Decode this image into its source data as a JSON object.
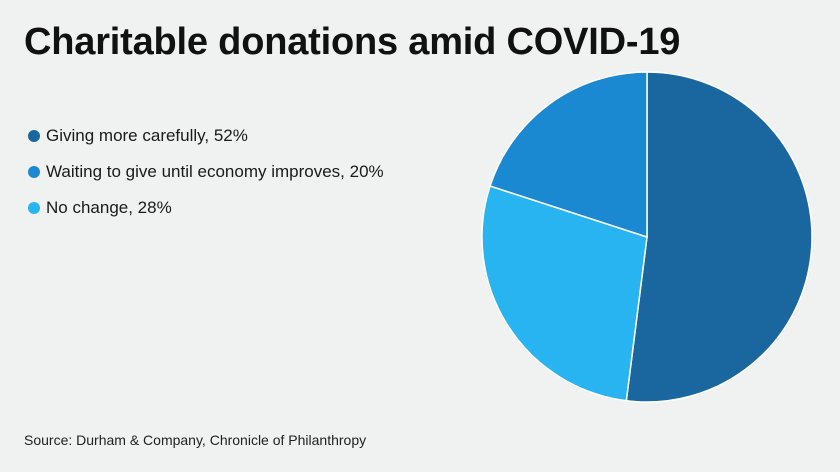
{
  "header": {
    "title": "Charitable donations amid COVID-19"
  },
  "legend": {
    "items": [
      {
        "label": "Giving more carefully, 52%",
        "color": "#1a67a0"
      },
      {
        "label": "Waiting to give until economy improves, 20%",
        "color": "#1b88d2"
      },
      {
        "label": "No change, 28%",
        "color": "#27b4f0"
      }
    ]
  },
  "footer": {
    "source": "Source: Durham & Company, Chronicle of Philanthropy"
  },
  "chart_data": {
    "type": "pie",
    "title": "Charitable donations amid COVID-19",
    "legend_position": "left",
    "slices": [
      {
        "label": "Giving more carefully",
        "value": 52,
        "color": "#1a67a0"
      },
      {
        "label": "No change",
        "value": 28,
        "color": "#27b4f0"
      },
      {
        "label": "Waiting to give until economy improves",
        "value": 20,
        "color": "#1b88d2"
      }
    ],
    "start_angle": "12 o'clock",
    "direction": "clockwise"
  }
}
